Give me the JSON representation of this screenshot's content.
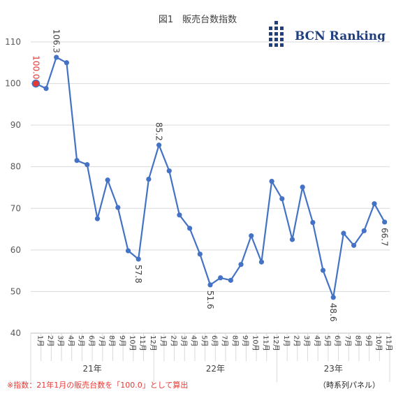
{
  "chart_data": {
    "type": "line",
    "title": "図1　販売台数指数",
    "xlabel": "",
    "ylabel": "",
    "ylim": [
      40,
      110
    ],
    "yticks": [
      40,
      50,
      60,
      70,
      80,
      90,
      100,
      110
    ],
    "grid": true,
    "legend": "none",
    "categories": [
      "1月",
      "2月",
      "3月",
      "4月",
      "5月",
      "6月",
      "7月",
      "8月",
      "9月",
      "10月",
      "11月",
      "12月",
      "1月",
      "2月",
      "3月",
      "4月",
      "5月",
      "6月",
      "7月",
      "8月",
      "9月",
      "10月",
      "11月",
      "12月",
      "1月",
      "2月",
      "3月",
      "4月",
      "5月",
      "6月",
      "7月",
      "8月",
      "9月",
      "10月",
      "11月"
    ],
    "years": [
      {
        "label": "21年",
        "start": 0,
        "count": 12
      },
      {
        "label": "22年",
        "start": 12,
        "count": 12
      },
      {
        "label": "23年",
        "start": 24,
        "count": 11
      }
    ],
    "series": [
      {
        "color": "#4472c4",
        "values": [
          100.0,
          98.8,
          106.3,
          105.0,
          81.5,
          80.5,
          67.5,
          76.8,
          70.2,
          59.8,
          57.8,
          77.0,
          85.2,
          79.0,
          68.4,
          65.2,
          59.0,
          51.6,
          53.3,
          52.7,
          56.5,
          63.4,
          57.1,
          76.5,
          72.3,
          62.5,
          75.1,
          66.6,
          55.1,
          48.6,
          64.0,
          61.1,
          64.6,
          71.1,
          66.7
        ]
      }
    ],
    "data_labels": [
      {
        "index": 0,
        "text": "100.0",
        "color": "#e53935"
      },
      {
        "index": 2,
        "text": "106.3"
      },
      {
        "index": 10,
        "text": "57.8"
      },
      {
        "index": 12,
        "text": "85.2"
      },
      {
        "index": 17,
        "text": "51.6"
      },
      {
        "index": 29,
        "text": "48.6"
      },
      {
        "index": 34,
        "text": "66.7"
      }
    ],
    "highlight_index": 0,
    "highlight_color": "#e53935"
  },
  "logo": {
    "text": "BCN Ranking",
    "color": "#1f3f7f"
  },
  "footnote": "※指数：21年1月の販売台数を「100.0」として算出",
  "panel_note": "（時系列パネル）"
}
